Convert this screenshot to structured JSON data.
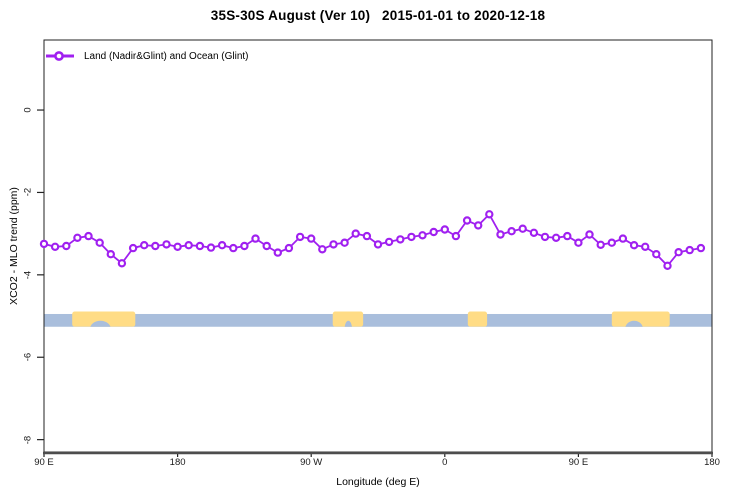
{
  "chart_data": {
    "type": "line",
    "title": "35S-30S August (Ver 10)   2015-01-01 to 2020-12-18",
    "xlabel": "Longitude (deg E)",
    "ylabel": "XCO2 - MLO trend (ppm)",
    "xlim": [
      90,
      540
    ],
    "ylim": [
      -8.3,
      1.7
    ],
    "grid": false,
    "legend_position": "top-left",
    "xtick_values": [
      90,
      180,
      270,
      360,
      450,
      540
    ],
    "xtick_labels": [
      "90 E",
      "180",
      "90 W",
      "0",
      "90 E",
      "180"
    ],
    "ytick_values": [
      0,
      -2,
      -4,
      -6,
      -8
    ],
    "ytick_labels": [
      "0",
      "-2",
      "-4",
      "-6",
      "-8"
    ],
    "series": [
      {
        "name": "Land (Nadir&Glint) and Ocean (Glint)",
        "color": "#A020F0",
        "marker": "open-circle",
        "x": [
          90,
          97.5,
          105,
          112.5,
          120,
          127.5,
          135,
          142.5,
          150,
          157.5,
          165,
          172.5,
          180,
          187.5,
          195,
          202.5,
          210,
          217.5,
          225,
          232.5,
          240,
          247.5,
          255,
          262.5,
          270,
          277.5,
          285,
          292.5,
          300,
          307.5,
          315,
          322.5,
          330,
          337.5,
          345,
          352.5,
          360,
          367.5,
          375,
          382.5,
          390,
          397.5,
          405,
          412.5,
          420,
          427.5,
          435,
          442.5,
          450,
          457.5,
          465,
          472.5,
          480,
          487.5,
          495,
          502.5,
          510,
          517.5,
          525,
          532.5
        ],
        "y": [
          -3.25,
          -3.32,
          -3.3,
          -3.1,
          -3.06,
          -3.22,
          -3.5,
          -3.72,
          -3.35,
          -3.28,
          -3.3,
          -3.26,
          -3.32,
          -3.28,
          -3.3,
          -3.34,
          -3.28,
          -3.35,
          -3.3,
          -3.12,
          -3.3,
          -3.46,
          -3.35,
          -3.08,
          -3.12,
          -3.38,
          -3.26,
          -3.22,
          -3.0,
          -3.06,
          -3.26,
          -3.2,
          -3.14,
          -3.08,
          -3.04,
          -2.96,
          -2.9,
          -3.06,
          -2.68,
          -2.8,
          -2.53,
          -3.02,
          -2.94,
          -2.88,
          -2.98,
          -3.08,
          -3.1,
          -3.06,
          -3.22,
          -3.02,
          -3.27,
          -3.22,
          -3.12,
          -3.28,
          -3.32,
          -3.5,
          -3.78,
          -3.45,
          -3.4,
          -3.35
        ]
      }
    ],
    "map_band": {
      "description": "land-ocean strip for 35S-30S latitude band",
      "value_top": -4.95,
      "value_bottom": -5.26,
      "ocean_color": "#A9BEDC",
      "land_color": "#FFDC85",
      "land_patches": [
        {
          "name": "australia",
          "from": 109,
          "to": 151.5,
          "notches": [
            {
              "from": 121,
              "to": 135
            }
          ]
        },
        {
          "name": "south-america",
          "from": 284.5,
          "to": 305,
          "notches": [
            {
              "from": 292.5,
              "to": 297.5
            }
          ]
        },
        {
          "name": "south-africa",
          "from": 375.5,
          "to": 388.5,
          "notches": []
        },
        {
          "name": "australia-wrapped",
          "from": 472.5,
          "to": 511.5,
          "notches": [
            {
              "from": 481.5,
              "to": 493.5
            }
          ]
        }
      ]
    },
    "colors": {
      "series": "#A020F0",
      "axis": "#222222",
      "baseline": "#4d4d4d"
    }
  }
}
